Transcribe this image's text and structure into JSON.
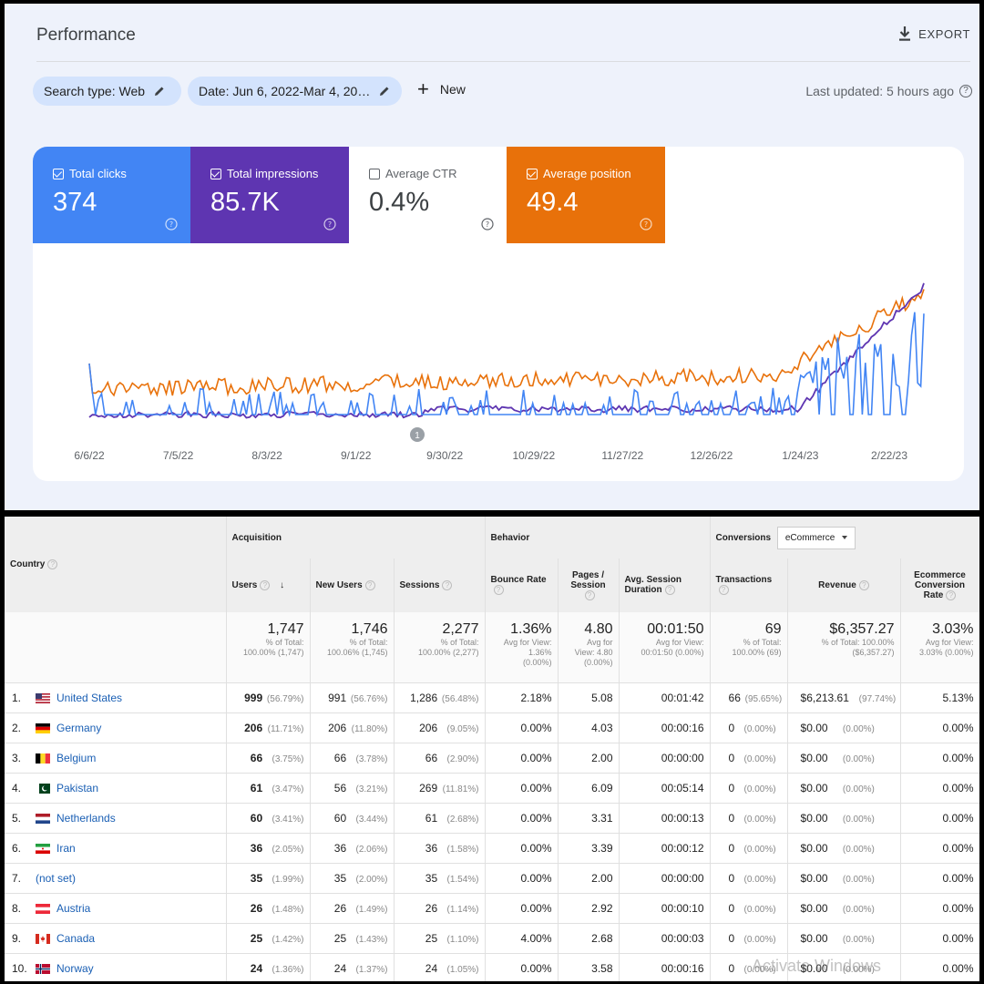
{
  "gsc": {
    "title": "Performance",
    "export_label": "EXPORT",
    "chips": {
      "search_type": "Search type: Web",
      "date": "Date: Jun 6, 2022-Mar 4, 20…"
    },
    "new_label": "New",
    "last_updated": "Last updated: 5 hours ago",
    "metrics": [
      {
        "label": "Total clicks",
        "value": "374",
        "checked": true,
        "color": "#4285f4"
      },
      {
        "label": "Total impressions",
        "value": "85.7K",
        "checked": true,
        "color": "#5e35b1"
      },
      {
        "label": "Average CTR",
        "value": "0.4%",
        "checked": false,
        "color": "#ffffff"
      },
      {
        "label": "Average position",
        "value": "49.4",
        "checked": true,
        "color": "#e8710a"
      }
    ],
    "chart_data": {
      "type": "line",
      "x_ticks": [
        "6/6/22",
        "7/5/22",
        "8/3/22",
        "9/1/22",
        "9/30/22",
        "10/29/22",
        "11/27/22",
        "12/26/22",
        "1/24/23",
        "2/22/23"
      ],
      "annotation_marker": "1",
      "grid": false,
      "series_colors": {
        "clicks": "#4285f4",
        "impressions": "#5e35b1",
        "position": "#e8710a"
      }
    }
  },
  "ga": {
    "headers": {
      "country": "Country",
      "acquisition": "Acquisition",
      "behavior": "Behavior",
      "conversions": "Conversions",
      "conversion_select": "eCommerce",
      "users": "Users",
      "new_users": "New Users",
      "sessions": "Sessions",
      "bounce_rate": "Bounce Rate",
      "pages_session": "Pages / Session",
      "avg_duration": "Avg. Session Duration",
      "transactions": "Transactions",
      "revenue": "Revenue",
      "ecom_rate": "Ecommerce Conversion Rate"
    },
    "totals": {
      "users": {
        "big": "1,747",
        "sub1": "% of Total:",
        "sub2": "100.00% (1,747)"
      },
      "new_users": {
        "big": "1,746",
        "sub1": "% of Total:",
        "sub2": "100.06% (1,745)"
      },
      "sessions": {
        "big": "2,277",
        "sub1": "% of Total:",
        "sub2": "100.00% (2,277)"
      },
      "bounce_rate": {
        "big": "1.36%",
        "sub1": "Avg for View:",
        "sub2": "1.36%",
        "sub3": "(0.00%)"
      },
      "pages_session": {
        "big": "4.80",
        "sub1": "Avg for",
        "sub2": "View: 4.80",
        "sub3": "(0.00%)"
      },
      "avg_duration": {
        "big": "00:01:50",
        "sub1": "Avg for View:",
        "sub2": "00:01:50 (0.00%)"
      },
      "transactions": {
        "big": "69",
        "sub1": "% of Total:",
        "sub2": "100.00% (69)"
      },
      "revenue": {
        "big": "$6,357.27",
        "sub1": "% of Total: 100.00%",
        "sub2": "($6,357.27)"
      },
      "ecom_rate": {
        "big": "3.03%",
        "sub1": "Avg for View:",
        "sub2": "3.03% (0.00%)"
      }
    },
    "rows": [
      {
        "n": "1.",
        "country": "United States",
        "flag": "us",
        "users": "999",
        "users_pct": "(56.79%)",
        "new_users": "991",
        "new_pct": "(56.76%)",
        "sessions": "1,286",
        "sess_pct": "(56.48%)",
        "bounce": "2.18%",
        "pages": "5.08",
        "dur": "00:01:42",
        "tx": "66",
        "tx_pct": "(95.65%)",
        "rev": "$6,213.61",
        "rev_pct": "(97.74%)",
        "rate": "5.13%"
      },
      {
        "n": "2.",
        "country": "Germany",
        "flag": "de",
        "users": "206",
        "users_pct": "(11.71%)",
        "new_users": "206",
        "new_pct": "(11.80%)",
        "sessions": "206",
        "sess_pct": "(9.05%)",
        "bounce": "0.00%",
        "pages": "4.03",
        "dur": "00:00:16",
        "tx": "0",
        "tx_pct": "(0.00%)",
        "rev": "$0.00",
        "rev_pct": "(0.00%)",
        "rate": "0.00%"
      },
      {
        "n": "3.",
        "country": "Belgium",
        "flag": "be",
        "users": "66",
        "users_pct": "(3.75%)",
        "new_users": "66",
        "new_pct": "(3.78%)",
        "sessions": "66",
        "sess_pct": "(2.90%)",
        "bounce": "0.00%",
        "pages": "2.00",
        "dur": "00:00:00",
        "tx": "0",
        "tx_pct": "(0.00%)",
        "rev": "$0.00",
        "rev_pct": "(0.00%)",
        "rate": "0.00%"
      },
      {
        "n": "4.",
        "country": "Pakistan",
        "flag": "pk",
        "users": "61",
        "users_pct": "(3.47%)",
        "new_users": "56",
        "new_pct": "(3.21%)",
        "sessions": "269",
        "sess_pct": "(11.81%)",
        "bounce": "0.00%",
        "pages": "6.09",
        "dur": "00:05:14",
        "tx": "0",
        "tx_pct": "(0.00%)",
        "rev": "$0.00",
        "rev_pct": "(0.00%)",
        "rate": "0.00%"
      },
      {
        "n": "5.",
        "country": "Netherlands",
        "flag": "nl",
        "users": "60",
        "users_pct": "(3.41%)",
        "new_users": "60",
        "new_pct": "(3.44%)",
        "sessions": "61",
        "sess_pct": "(2.68%)",
        "bounce": "0.00%",
        "pages": "3.31",
        "dur": "00:00:13",
        "tx": "0",
        "tx_pct": "(0.00%)",
        "rev": "$0.00",
        "rev_pct": "(0.00%)",
        "rate": "0.00%"
      },
      {
        "n": "6.",
        "country": "Iran",
        "flag": "ir",
        "users": "36",
        "users_pct": "(2.05%)",
        "new_users": "36",
        "new_pct": "(2.06%)",
        "sessions": "36",
        "sess_pct": "(1.58%)",
        "bounce": "0.00%",
        "pages": "3.39",
        "dur": "00:00:12",
        "tx": "0",
        "tx_pct": "(0.00%)",
        "rev": "$0.00",
        "rev_pct": "(0.00%)",
        "rate": "0.00%"
      },
      {
        "n": "7.",
        "country": "(not set)",
        "flag": "",
        "users": "35",
        "users_pct": "(1.99%)",
        "new_users": "35",
        "new_pct": "(2.00%)",
        "sessions": "35",
        "sess_pct": "(1.54%)",
        "bounce": "0.00%",
        "pages": "2.00",
        "dur": "00:00:00",
        "tx": "0",
        "tx_pct": "(0.00%)",
        "rev": "$0.00",
        "rev_pct": "(0.00%)",
        "rate": "0.00%"
      },
      {
        "n": "8.",
        "country": "Austria",
        "flag": "at",
        "users": "26",
        "users_pct": "(1.48%)",
        "new_users": "26",
        "new_pct": "(1.49%)",
        "sessions": "26",
        "sess_pct": "(1.14%)",
        "bounce": "0.00%",
        "pages": "2.92",
        "dur": "00:00:10",
        "tx": "0",
        "tx_pct": "(0.00%)",
        "rev": "$0.00",
        "rev_pct": "(0.00%)",
        "rate": "0.00%"
      },
      {
        "n": "9.",
        "country": "Canada",
        "flag": "ca",
        "users": "25",
        "users_pct": "(1.42%)",
        "new_users": "25",
        "new_pct": "(1.43%)",
        "sessions": "25",
        "sess_pct": "(1.10%)",
        "bounce": "4.00%",
        "pages": "2.68",
        "dur": "00:00:03",
        "tx": "0",
        "tx_pct": "(0.00%)",
        "rev": "$0.00",
        "rev_pct": "(0.00%)",
        "rate": "0.00%"
      },
      {
        "n": "10.",
        "country": "Norway",
        "flag": "no",
        "users": "24",
        "users_pct": "(1.36%)",
        "new_users": "24",
        "new_pct": "(1.37%)",
        "sessions": "24",
        "sess_pct": "(1.05%)",
        "bounce": "0.00%",
        "pages": "3.58",
        "dur": "00:00:16",
        "tx": "0",
        "tx_pct": "(0.00%)",
        "rev": "$0.00",
        "rev_pct": "(0.00%)",
        "rate": "0.00%"
      }
    ],
    "watermark": "Activate Windows"
  }
}
